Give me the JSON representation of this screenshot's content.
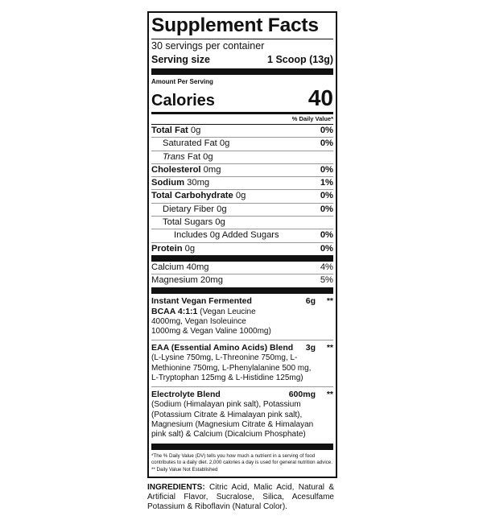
{
  "title": "Supplement Facts",
  "servings": "30 servings per container",
  "serving_size": {
    "label": "Serving size",
    "value": "1 Scoop (13g)"
  },
  "amount_per_serving": "Amount Per Serving",
  "calories": {
    "label": "Calories",
    "value": "40"
  },
  "daily_value_header": "% Daily Value*",
  "nutrients": [
    {
      "name": "Total Fat",
      "amount": "0g",
      "dv": "0%"
    },
    {
      "name": "Saturated Fat",
      "amount": "0g",
      "dv": "0%"
    },
    {
      "name": "Trans",
      "suffix": "Fat 0g",
      "dv": ""
    },
    {
      "name": "Cholesterol",
      "amount": "0mg",
      "dv": "0%"
    },
    {
      "name": "Sodium",
      "amount": "30mg",
      "dv": "1%"
    },
    {
      "name": "Total Carbohydrate",
      "amount": "0g",
      "dv": "0%"
    },
    {
      "name": "Dietary Fiber",
      "amount": "0g",
      "dv": "0%"
    },
    {
      "name": "Total Sugars",
      "amount": "0g",
      "dv": ""
    },
    {
      "name": "Includes 0g Added Sugars",
      "amount": "",
      "dv": "0%"
    },
    {
      "name": "Protein",
      "amount": "0g",
      "dv": "0%"
    }
  ],
  "minerals": [
    {
      "name": "Calcium 40mg",
      "dv": "4%"
    },
    {
      "name": "Magnesium 20mg",
      "dv": "5%"
    }
  ],
  "blends": [
    {
      "name": "Instant Vegan Fermented",
      "name2": "BCAA 4:1:1",
      "amount": "6g",
      "dv": "**",
      "detail": " (Vegan Leucine 4000mg, Vegan Isoleuince 1000mg & Vegan Valine 1000mg)"
    },
    {
      "name": "EAA (Essential Amino Acids) Blend",
      "amount": "3g",
      "dv": "**",
      "detail": "(L-Lysine 750mg, L-Threonine 750mg, L-Methionine 750mg, L-Phenylalanine 500 mg, L-Tryptophan 125mg & L-Histidine 125mg)"
    },
    {
      "name": "Electrolyte Blend",
      "amount": "600mg",
      "dv": "**",
      "detail": "(Sodium (Himalayan pink salt), Potassium (Potassium Citrate & Himalayan pink salt), Magnesium (Magnesium Citrate & Himalayan pink salt) & Calcium (Dicalcium Phosphate)"
    }
  ],
  "footnote1": "*The % Daily Value (DV) tells you how much a nutrient in a serving of food contributes to a daily diet. 2,000 calories a day is used for general nutrition advice.",
  "footnote2": "** Daily Value Not Established",
  "ingredients": {
    "label": "INGREDIENTS:",
    "text": " Citric Acid, Malic Acid, Natural & Artificial Flavor, Sucralose, Silica, Acesulfame Potassium & Riboflavin (Natural Color)."
  }
}
